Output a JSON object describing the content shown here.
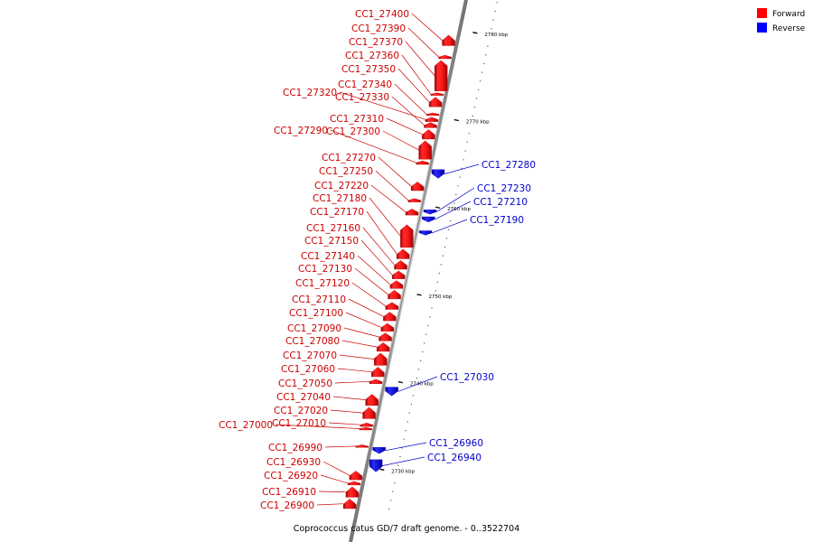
{
  "legend": {
    "forward": {
      "label": "Forward",
      "color": "#ff0000"
    },
    "reverse": {
      "label": "Reverse",
      "color": "#0000ff"
    }
  },
  "caption": "Coprococcus catus GD/7 draft genome. - 0..3522704",
  "scale": {
    "start_kbp": 2726,
    "end_kbp": 2784,
    "unit": "kbp"
  },
  "ticks": [
    {
      "label": "2730 kbp",
      "kbp": 2730
    },
    {
      "label": "2740 kbp",
      "kbp": 2740
    },
    {
      "label": "2750 kbp",
      "kbp": 2750
    },
    {
      "label": "2760 kbp",
      "kbp": 2760
    },
    {
      "label": "2770 kbp",
      "kbp": 2770
    },
    {
      "label": "2780 kbp",
      "kbp": 2780
    }
  ],
  "genes": [
    {
      "name": "CC1_27400",
      "strand": "forward",
      "start": 2779.0,
      "end": 2780.2
    },
    {
      "name": "CC1_27390",
      "strand": "forward",
      "start": 2777.5,
      "end": 2777.9
    },
    {
      "name": "CC1_27370",
      "strand": "forward",
      "start": 2773.8,
      "end": 2777.3
    },
    {
      "name": "CC1_27360",
      "strand": "forward",
      "start": 2773.3,
      "end": 2773.6
    },
    {
      "name": "CC1_27350",
      "strand": "forward",
      "start": 2772.0,
      "end": 2773.1
    },
    {
      "name": "CC1_27340",
      "strand": "forward",
      "start": 2771.0,
      "end": 2771.3
    },
    {
      "name": "CC1_27330",
      "strand": "forward",
      "start": 2769.6,
      "end": 2770.2
    },
    {
      "name": "CC1_27320",
      "strand": "forward",
      "start": 2770.3,
      "end": 2770.8
    },
    {
      "name": "CC1_27310",
      "strand": "forward",
      "start": 2768.3,
      "end": 2769.4
    },
    {
      "name": "CC1_27300",
      "strand": "forward",
      "start": 2766.0,
      "end": 2768.1
    },
    {
      "name": "CC1_27290",
      "strand": "forward",
      "start": 2765.4,
      "end": 2765.8
    },
    {
      "name": "CC1_27280",
      "strand": "reverse",
      "start": 2763.8,
      "end": 2764.8
    },
    {
      "name": "CC1_27270",
      "strand": "forward",
      "start": 2762.4,
      "end": 2763.4
    },
    {
      "name": "CC1_27250",
      "strand": "forward",
      "start": 2761.1,
      "end": 2761.5
    },
    {
      "name": "CC1_27230",
      "strand": "reverse",
      "start": 2759.7,
      "end": 2760.2
    },
    {
      "name": "CC1_27220",
      "strand": "forward",
      "start": 2759.6,
      "end": 2760.3
    },
    {
      "name": "CC1_27210",
      "strand": "reverse",
      "start": 2758.8,
      "end": 2759.4
    },
    {
      "name": "CC1_27190",
      "strand": "reverse",
      "start": 2757.3,
      "end": 2757.8
    },
    {
      "name": "CC1_27180",
      "strand": "forward",
      "start": 2755.9,
      "end": 2758.5
    },
    {
      "name": "CC1_27170",
      "strand": "forward",
      "start": 2754.6,
      "end": 2755.7
    },
    {
      "name": "CC1_27160",
      "strand": "forward",
      "start": 2753.4,
      "end": 2754.4
    },
    {
      "name": "CC1_27150",
      "strand": "forward",
      "start": 2752.3,
      "end": 2753.2
    },
    {
      "name": "CC1_27140",
      "strand": "forward",
      "start": 2751.2,
      "end": 2752.1
    },
    {
      "name": "CC1_27130",
      "strand": "forward",
      "start": 2750.0,
      "end": 2751.0
    },
    {
      "name": "CC1_27120",
      "strand": "forward",
      "start": 2748.8,
      "end": 2749.6
    },
    {
      "name": "CC1_27110",
      "strand": "forward",
      "start": 2747.5,
      "end": 2748.5
    },
    {
      "name": "CC1_27100",
      "strand": "forward",
      "start": 2746.3,
      "end": 2747.2
    },
    {
      "name": "CC1_27090",
      "strand": "forward",
      "start": 2745.2,
      "end": 2746.1
    },
    {
      "name": "CC1_27080",
      "strand": "forward",
      "start": 2744.0,
      "end": 2745.0
    },
    {
      "name": "CC1_27070",
      "strand": "forward",
      "start": 2742.4,
      "end": 2743.8
    },
    {
      "name": "CC1_27060",
      "strand": "forward",
      "start": 2741.1,
      "end": 2742.2
    },
    {
      "name": "CC1_27050",
      "strand": "forward",
      "start": 2740.3,
      "end": 2740.8
    },
    {
      "name": "CC1_27030",
      "strand": "reverse",
      "start": 2738.9,
      "end": 2739.9
    },
    {
      "name": "CC1_27040",
      "strand": "forward",
      "start": 2737.8,
      "end": 2739.1
    },
    {
      "name": "CC1_27020",
      "strand": "forward",
      "start": 2736.3,
      "end": 2737.6
    },
    {
      "name": "CC1_27010",
      "strand": "forward",
      "start": 2735.4,
      "end": 2735.8
    },
    {
      "name": "CC1_27000",
      "strand": "forward",
      "start": 2735.0,
      "end": 2735.3
    },
    {
      "name": "CC1_26990",
      "strand": "forward",
      "start": 2733.0,
      "end": 2733.3
    },
    {
      "name": "CC1_26960",
      "strand": "reverse",
      "start": 2732.3,
      "end": 2733.0
    },
    {
      "name": "CC1_26940",
      "strand": "reverse",
      "start": 2730.2,
      "end": 2731.6
    },
    {
      "name": "CC1_26930",
      "strand": "forward",
      "start": 2729.3,
      "end": 2730.3
    },
    {
      "name": "CC1_26920",
      "strand": "forward",
      "start": 2728.7,
      "end": 2729.1
    },
    {
      "name": "CC1_26910",
      "strand": "forward",
      "start": 2727.3,
      "end": 2728.5
    },
    {
      "name": "CC1_26900",
      "strand": "forward",
      "start": 2726.0,
      "end": 2727.1
    }
  ]
}
